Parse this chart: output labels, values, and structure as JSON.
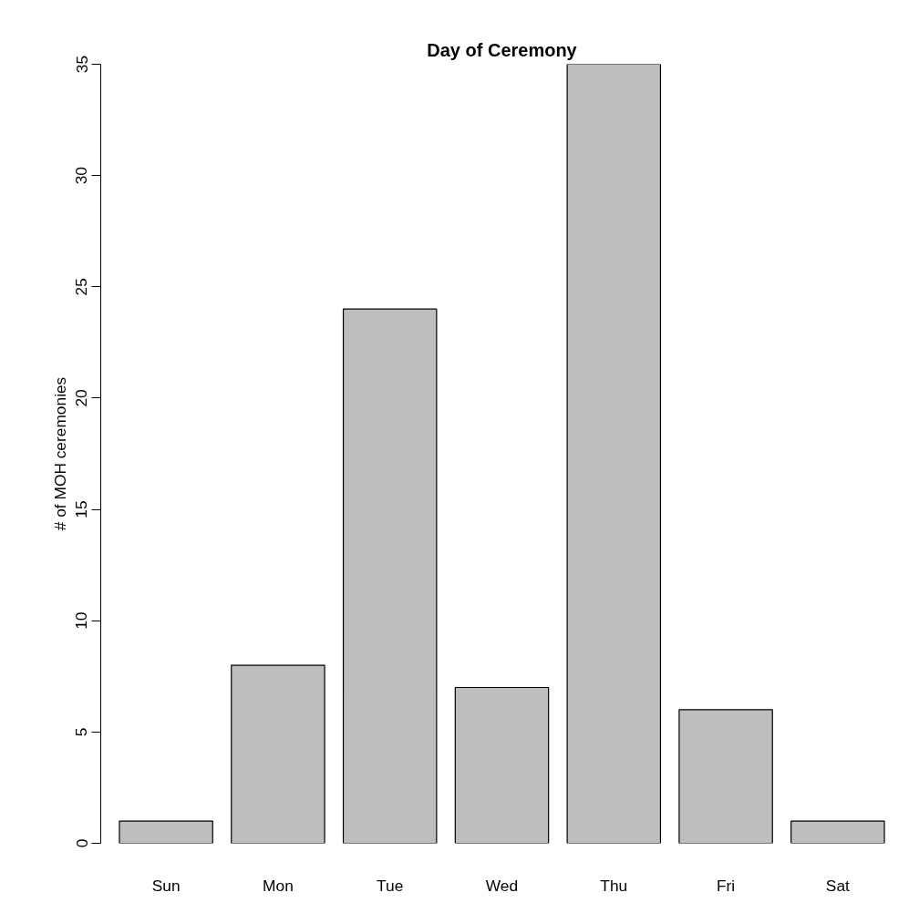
{
  "chart_data": {
    "type": "bar",
    "title": "Day of Ceremony",
    "ylabel": "# of MOH ceremonies",
    "categories": [
      "Sun",
      "Mon",
      "Tue",
      "Wed",
      "Thu",
      "Fri",
      "Sat"
    ],
    "values": [
      1,
      8,
      24,
      7,
      35,
      6,
      1
    ],
    "color": "#bebebe",
    "ylim": [
      0,
      35
    ],
    "yticks": [
      0,
      5,
      10,
      15,
      20,
      25,
      30,
      35
    ],
    "grid": false
  }
}
